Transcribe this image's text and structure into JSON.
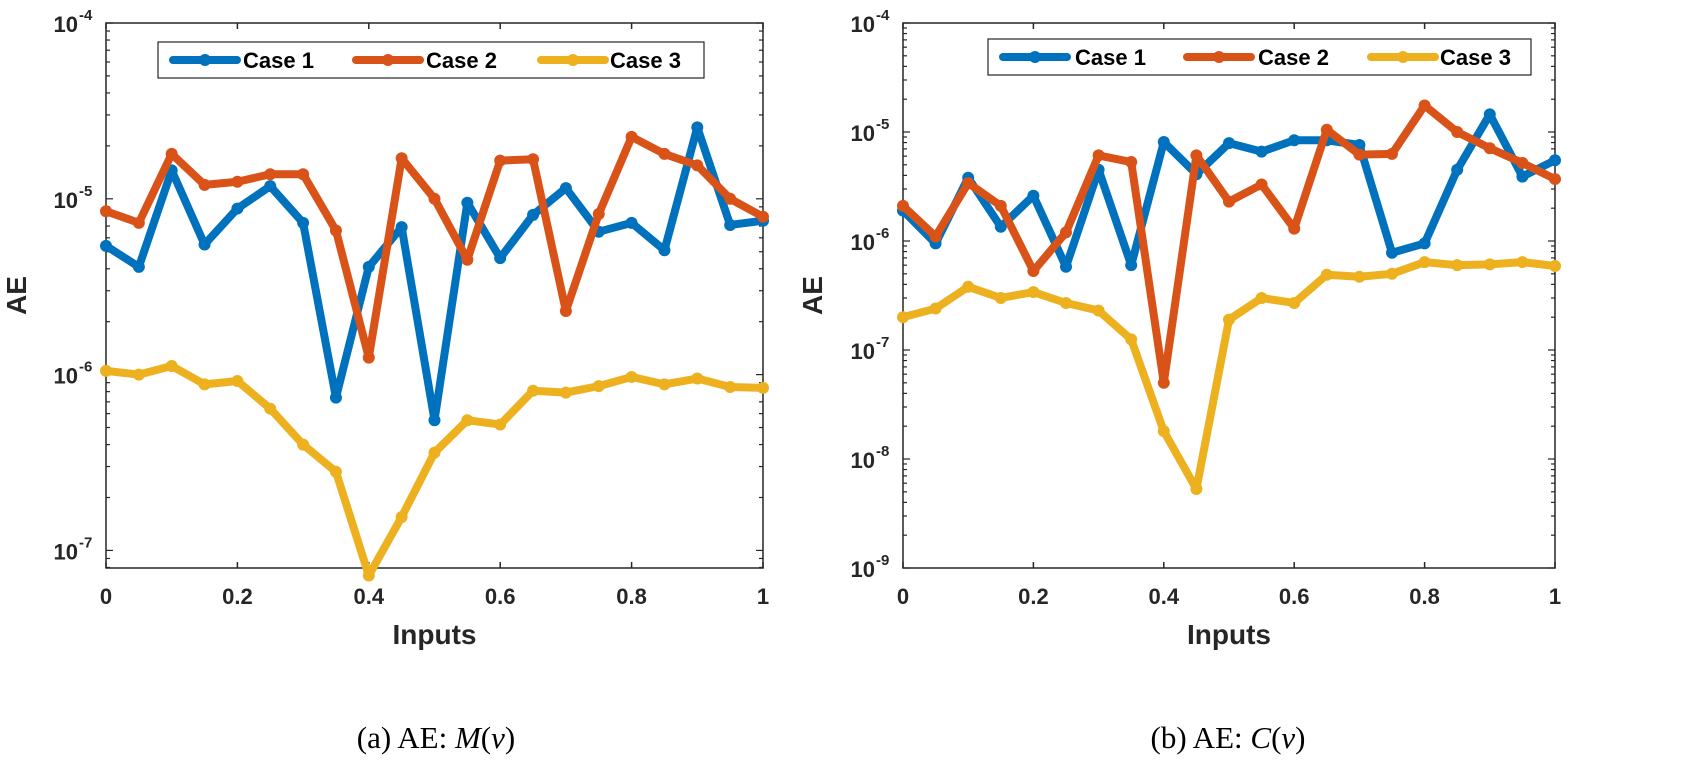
{
  "chart_data": [
    {
      "type": "line",
      "id": "a",
      "caption": {
        "prefix": "(a) AE: ",
        "func": "M",
        "open": "(",
        "var": "v",
        "close": ")"
      },
      "xlabel": "Inputs",
      "ylabel": "AE",
      "xlim": [
        0,
        1
      ],
      "ylim_exp": [
        -7.1,
        -4
      ],
      "xticks": [
        "0",
        "0.2",
        "0.4",
        "0.6",
        "0.8",
        "1"
      ],
      "yticks": [
        {
          "exp": -7,
          "base": "10",
          "sup": "-7"
        },
        {
          "exp": -6,
          "base": "10",
          "sup": "-6"
        },
        {
          "exp": -5,
          "base": "10",
          "sup": "-5"
        },
        {
          "exp": -4,
          "base": "10",
          "sup": "-4"
        }
      ],
      "legend_position": "top-center",
      "x": [
        0,
        0.05,
        0.1,
        0.15,
        0.2,
        0.25,
        0.3,
        0.35,
        0.4,
        0.45,
        0.5,
        0.55,
        0.6,
        0.65,
        0.7,
        0.75,
        0.8,
        0.85,
        0.9,
        0.95,
        1
      ],
      "series": [
        {
          "name": "Case 1",
          "color": "#0072BD",
          "values": [
            5.4e-06,
            4.1e-06,
            1.45e-05,
            5.5e-06,
            8.8e-06,
            1.18e-05,
            7.3e-06,
            7.4e-07,
            4.1e-06,
            6.9e-06,
            5.5e-07,
            9.5e-06,
            4.6e-06,
            8.1e-06,
            1.15e-05,
            6.5e-06,
            7.3e-06,
            5.1e-06,
            2.55e-05,
            7.1e-06,
            7.5e-06
          ]
        },
        {
          "name": "Case 2",
          "color": "#D95319",
          "values": [
            8.5e-06,
            7.3e-06,
            1.8e-05,
            1.2e-05,
            1.25e-05,
            1.38e-05,
            1.38e-05,
            6.6e-06,
            1.25e-06,
            1.7e-05,
            1e-05,
            4.5e-06,
            1.65e-05,
            1.68e-05,
            2.3e-06,
            8.2e-06,
            2.25e-05,
            1.8e-05,
            1.55e-05,
            1e-05,
            7.9e-06
          ]
        },
        {
          "name": "Case 3",
          "color": "#EDB120",
          "values": [
            1.05e-06,
            1e-06,
            1.12e-06,
            8.8e-07,
            9.2e-07,
            6.4e-07,
            4e-07,
            2.8e-07,
            7.2e-08,
            1.55e-07,
            3.6e-07,
            5.5e-07,
            5.2e-07,
            8.1e-07,
            7.9e-07,
            8.6e-07,
            9.7e-07,
            8.8e-07,
            9.5e-07,
            8.5e-07,
            8.4e-07
          ]
        }
      ]
    },
    {
      "type": "line",
      "id": "b",
      "caption": {
        "prefix": "(b) AE: ",
        "func": "C",
        "open": "(",
        "var": "v",
        "close": ")"
      },
      "xlabel": "Inputs",
      "ylabel": "AE",
      "xlim": [
        0,
        1
      ],
      "ylim_exp": [
        -9,
        -4
      ],
      "xticks": [
        "0",
        "0.2",
        "0.4",
        "0.6",
        "0.8",
        "1"
      ],
      "yticks": [
        {
          "exp": -9,
          "base": "10",
          "sup": "-9"
        },
        {
          "exp": -8,
          "base": "10",
          "sup": "-8"
        },
        {
          "exp": -7,
          "base": "10",
          "sup": "-7"
        },
        {
          "exp": -6,
          "base": "10",
          "sup": "-6"
        },
        {
          "exp": -5,
          "base": "10",
          "sup": "-5"
        },
        {
          "exp": -4,
          "base": "10",
          "sup": "-4"
        }
      ],
      "legend_position": "top-center",
      "x": [
        0,
        0.05,
        0.1,
        0.15,
        0.2,
        0.25,
        0.3,
        0.35,
        0.4,
        0.45,
        0.5,
        0.55,
        0.6,
        0.65,
        0.7,
        0.75,
        0.8,
        0.85,
        0.9,
        0.95,
        1
      ],
      "series": [
        {
          "name": "Case 1",
          "color": "#0072BD",
          "values": [
            1.9e-06,
            9.5e-07,
            3.8e-06,
            1.35e-06,
            2.6e-06,
            5.8e-07,
            4.5e-06,
            6e-07,
            8.1e-06,
            4.1e-06,
            7.9e-06,
            6.6e-06,
            8.4e-06,
            8.4e-06,
            7.6e-06,
            7.8e-07,
            9.5e-07,
            4.5e-06,
            1.45e-05,
            3.9e-06,
            5.5e-06
          ]
        },
        {
          "name": "Case 2",
          "color": "#D95319",
          "values": [
            2.1e-06,
            1.1e-06,
            3.4e-06,
            2.1e-06,
            5.3e-07,
            1.2e-06,
            6.1e-06,
            5.3e-06,
            5e-08,
            6.1e-06,
            2.3e-06,
            3.3e-06,
            1.3e-06,
            1.05e-05,
            6.2e-06,
            6.3e-06,
            1.75e-05,
            1e-05,
            7.1e-06,
            5.2e-06,
            3.7e-06
          ]
        },
        {
          "name": "Case 3",
          "color": "#EDB120",
          "values": [
            2e-07,
            2.4e-07,
            3.8e-07,
            3e-07,
            3.4e-07,
            2.7e-07,
            2.3e-07,
            1.25e-07,
            1.8e-08,
            5.3e-09,
            1.9e-07,
            3e-07,
            2.7e-07,
            4.9e-07,
            4.7e-07,
            5e-07,
            6.4e-07,
            6e-07,
            6.1e-07,
            6.4e-07,
            5.9e-07
          ]
        }
      ]
    }
  ]
}
